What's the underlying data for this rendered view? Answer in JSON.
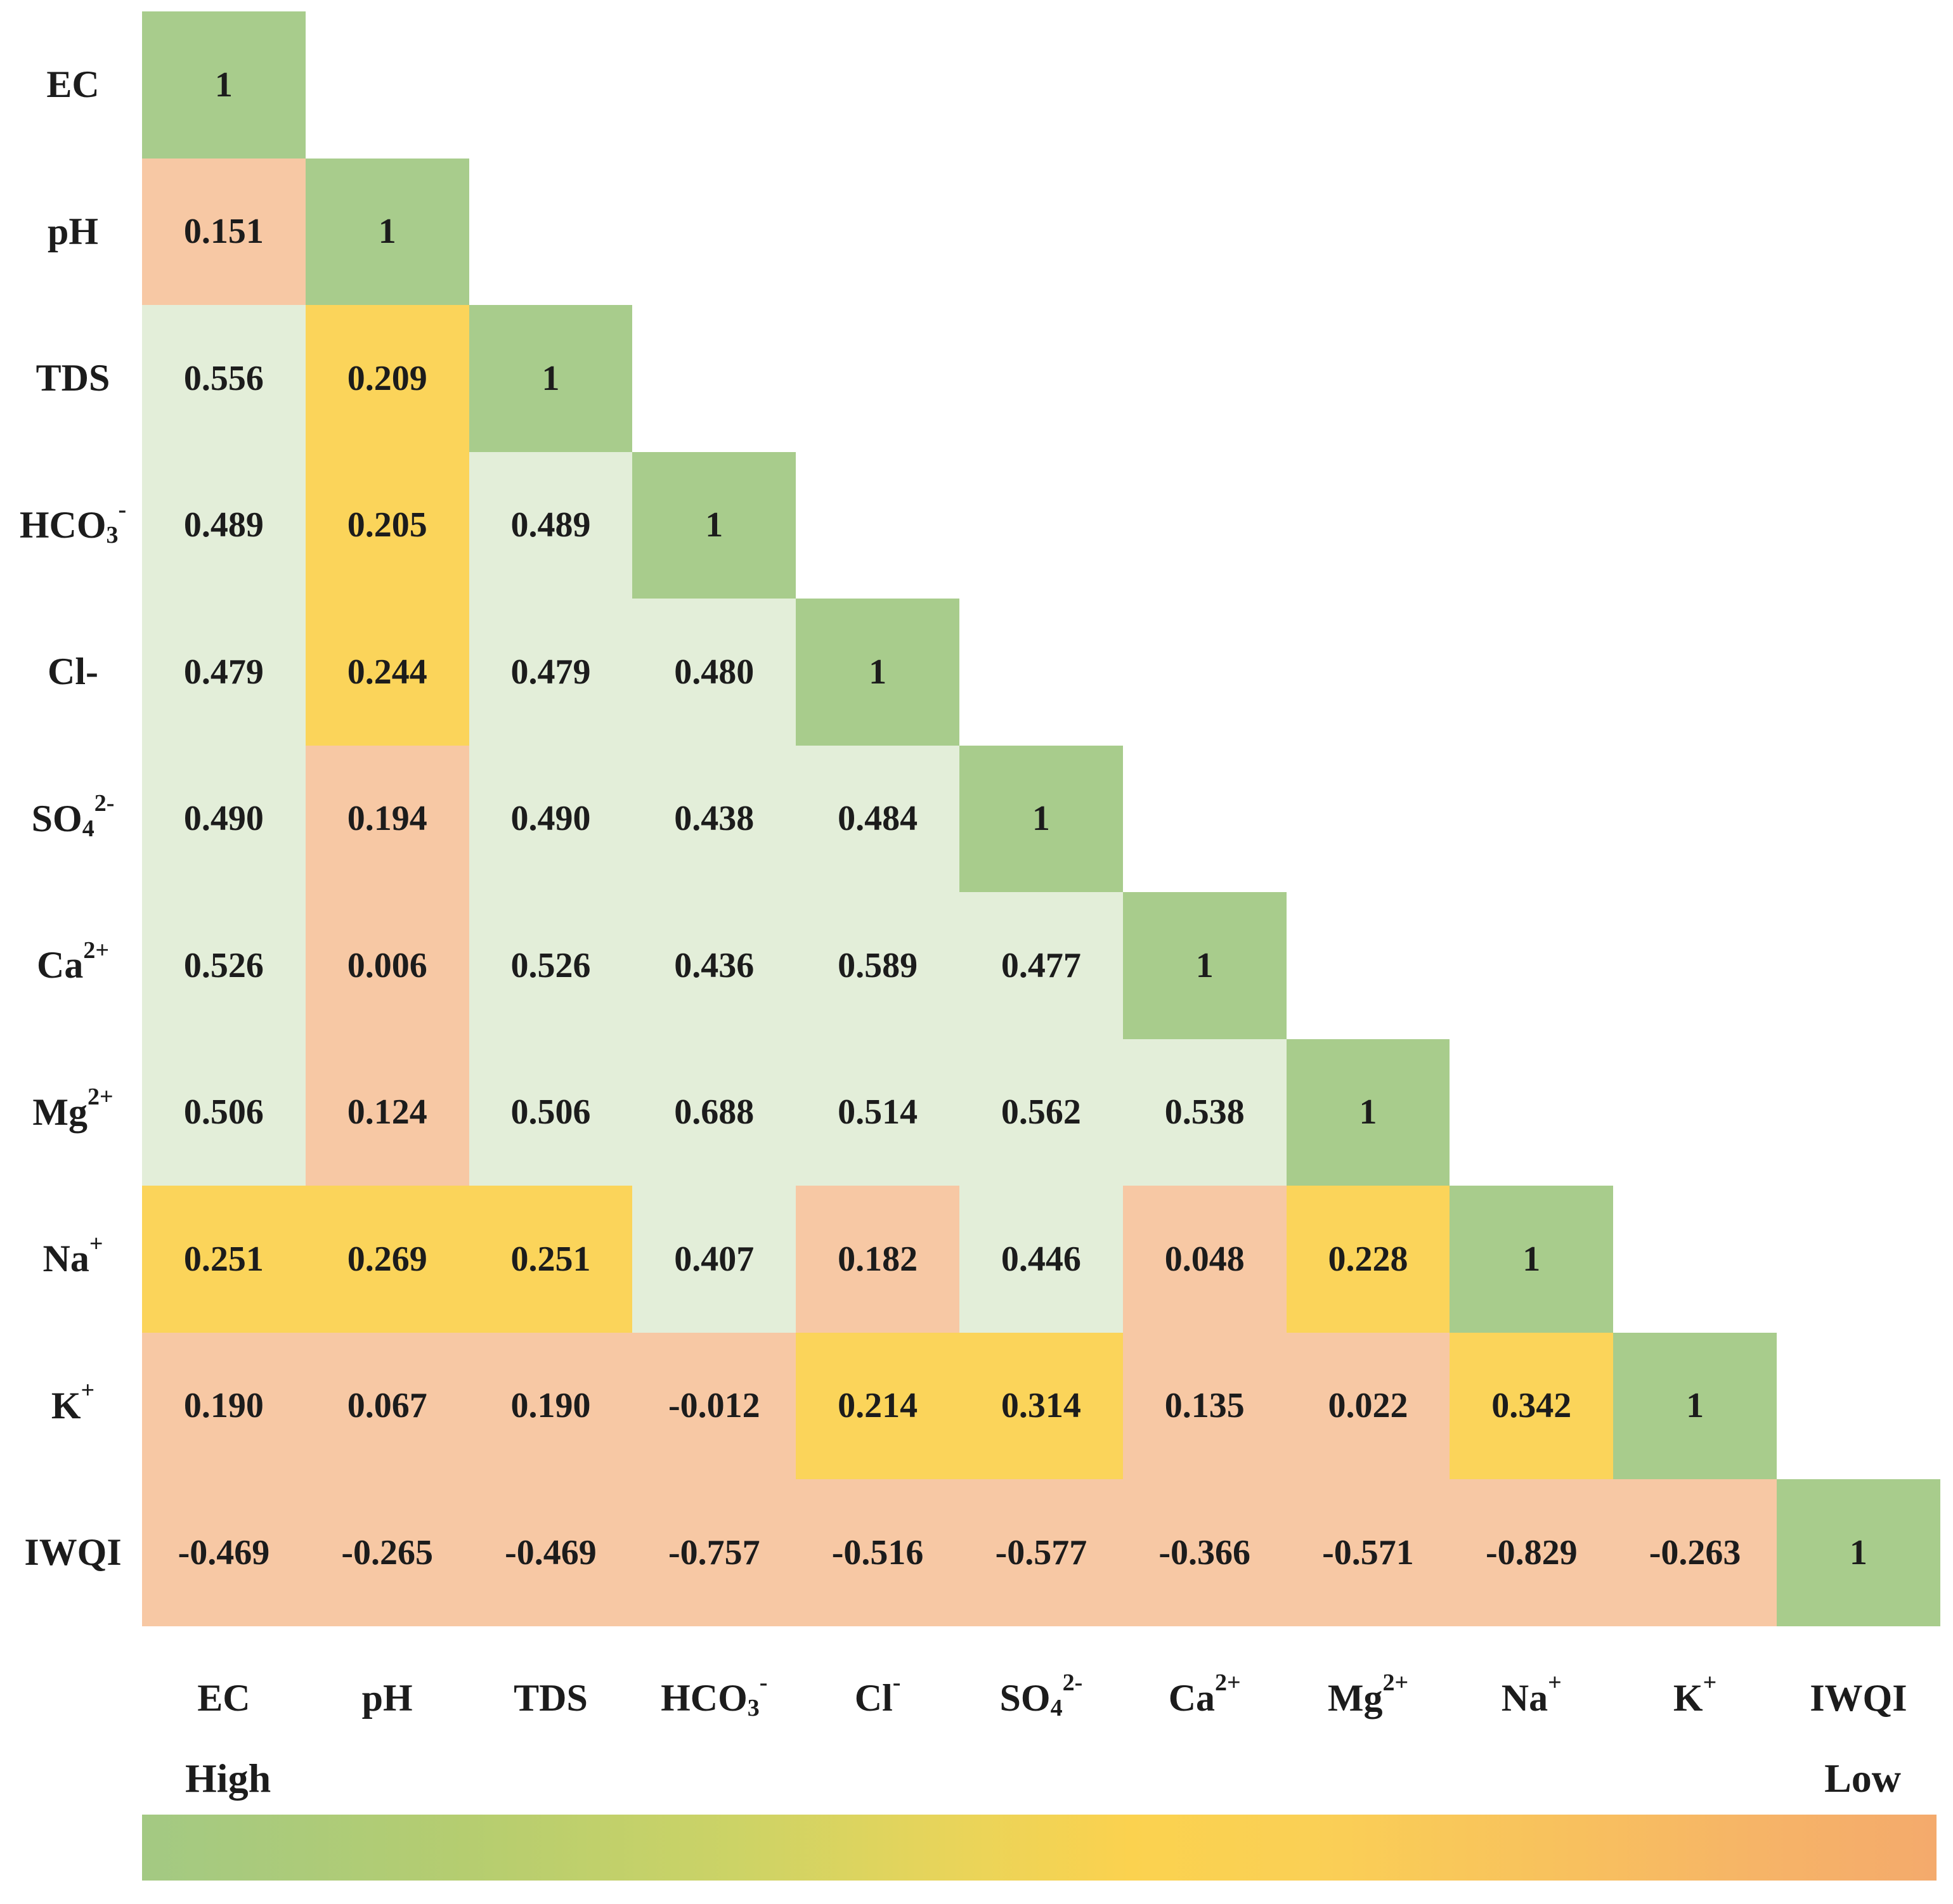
{
  "chart_data": {
    "type": "heatmap",
    "subtype": "correlation-matrix-lower-triangle",
    "title": "",
    "ids": [
      "EC",
      "pH",
      "TDS",
      "HCO3",
      "Cl",
      "SO4",
      "Ca",
      "Mg",
      "Na",
      "K",
      "IWQI"
    ],
    "row_labels": [
      {
        "base": "EC"
      },
      {
        "base": "pH"
      },
      {
        "base": "TDS"
      },
      {
        "base": "HCO",
        "sub": "3",
        "sup": "-"
      },
      {
        "base": "Cl-"
      },
      {
        "base": "SO",
        "sub": "4",
        "sup": "2-"
      },
      {
        "base": "Ca",
        "sup": "2+"
      },
      {
        "base": "Mg",
        "sup": "2+"
      },
      {
        "base": "Na",
        "sup": "+"
      },
      {
        "base": "K",
        "sup": "+"
      },
      {
        "base": "IWQI"
      }
    ],
    "col_labels": [
      {
        "base": "EC"
      },
      {
        "base": "pH"
      },
      {
        "base": "TDS"
      },
      {
        "base": "HCO",
        "sub": "3",
        "sup": "-"
      },
      {
        "base": "Cl",
        "sup": "-"
      },
      {
        "base": "SO",
        "sub": "4",
        "sup": "2-"
      },
      {
        "base": "Ca",
        "sup": "2+"
      },
      {
        "base": "Mg",
        "sup": "2+"
      },
      {
        "base": "Na",
        "sup": "+"
      },
      {
        "base": "K",
        "sup": "+"
      },
      {
        "base": "IWQI"
      }
    ],
    "values": [
      [
        "1"
      ],
      [
        "0.151",
        "1"
      ],
      [
        "0.556",
        "0.209",
        "1"
      ],
      [
        "0.489",
        "0.205",
        "0.489",
        "1"
      ],
      [
        "0.479",
        "0.244",
        "0.479",
        "0.480",
        "1"
      ],
      [
        "0.490",
        "0.194",
        "0.490",
        "0.438",
        "0.484",
        "1"
      ],
      [
        "0.526",
        "0.006",
        "0.526",
        "0.436",
        "0.589",
        "0.477",
        "1"
      ],
      [
        "0.506",
        "0.124",
        "0.506",
        "0.688",
        "0.514",
        "0.562",
        "0.538",
        "1"
      ],
      [
        "0.251",
        "0.269",
        "0.251",
        "0.407",
        "0.182",
        "0.446",
        "0.048",
        "0.228",
        "1"
      ],
      [
        "0.190",
        "0.067",
        "0.190",
        "-0.012",
        "0.214",
        "0.314",
        "0.135",
        "0.022",
        "0.342",
        "1"
      ],
      [
        "-0.469",
        "-0.265",
        "-0.469",
        "-0.757",
        "-0.516",
        "-0.577",
        "-0.366",
        "-0.571",
        "-0.829",
        "-0.263",
        "1"
      ]
    ],
    "cell_colors": [
      [
        "g"
      ],
      [
        "p",
        "g"
      ],
      [
        "l",
        "y",
        "g"
      ],
      [
        "l",
        "y",
        "l",
        "g"
      ],
      [
        "l",
        "y",
        "l",
        "l",
        "g"
      ],
      [
        "l",
        "p",
        "l",
        "l",
        "l",
        "g"
      ],
      [
        "l",
        "p",
        "l",
        "l",
        "l",
        "l",
        "g"
      ],
      [
        "l",
        "p",
        "l",
        "l",
        "l",
        "l",
        "l",
        "g"
      ],
      [
        "y",
        "y",
        "y",
        "l",
        "p",
        "l",
        "p",
        "y",
        "g"
      ],
      [
        "p",
        "p",
        "p",
        "p",
        "y",
        "y",
        "p",
        "p",
        "y",
        "g"
      ],
      [
        "p",
        "p",
        "p",
        "p",
        "p",
        "p",
        "p",
        "p",
        "p",
        "p",
        "g"
      ]
    ],
    "palette": {
      "g": "#a8cc8c",
      "l": "#e3eed9",
      "y": "#fbd45a",
      "p": "#f7c8a4"
    },
    "legend": {
      "high_label": "High",
      "low_label": "Low",
      "gradient_colors": [
        "#a3c983",
        "#ccd366",
        "#fbd24f",
        "#f8c05e",
        "#f4aa6c"
      ]
    }
  }
}
